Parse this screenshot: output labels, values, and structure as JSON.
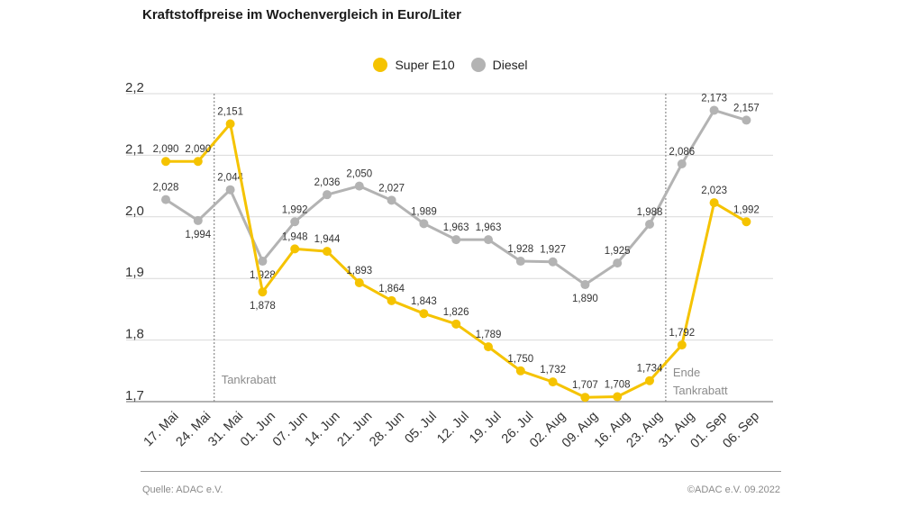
{
  "title": "Kraftstoffpreise im Wochenvergleich in Euro/Liter",
  "source": "Quelle: ADAC e.V.",
  "copyright": "©ADAC e.V.  09.2022",
  "colors": {
    "super": "#f5c300",
    "diesel": "#b3b3b3",
    "grid": "#d9d9d9",
    "annotation": "#8c8c8c"
  },
  "chart_data": {
    "type": "line",
    "categories": [
      "17. Mai",
      "24. Mai",
      "31. Mai",
      "01. Jun",
      "07. Jun",
      "14. Jun",
      "21. Jun",
      "28. Jun",
      "05. Jul",
      "12. Jul",
      "19. Jul",
      "26. Jul",
      "02. Aug",
      "09. Aug",
      "16. Aug",
      "23. Aug",
      "31. Aug",
      "01. Sep",
      "06. Sep"
    ],
    "series": [
      {
        "name": "Super E10",
        "color": "#f5c300",
        "values": [
          2.09,
          2.09,
          2.151,
          1.878,
          1.948,
          1.944,
          1.893,
          1.864,
          1.843,
          1.826,
          1.789,
          1.75,
          1.732,
          1.707,
          1.708,
          1.734,
          1.792,
          2.023,
          1.992
        ],
        "labels": [
          "2,090",
          "2,090",
          "2,151",
          "1,878",
          "1,948",
          "1,944",
          "1,893",
          "1,864",
          "1,843",
          "1,826",
          "1,789",
          "1,750",
          "1,732",
          "1,707",
          "1,708",
          "1,734",
          "1,792",
          "2,023",
          "1,992"
        ]
      },
      {
        "name": "Diesel",
        "color": "#b3b3b3",
        "values": [
          2.028,
          1.994,
          2.044,
          1.928,
          1.992,
          2.036,
          2.05,
          2.027,
          1.989,
          1.963,
          1.963,
          1.928,
          1.927,
          1.89,
          1.925,
          1.988,
          2.086,
          2.173,
          2.157
        ],
        "labels": [
          "2,028",
          "1,994",
          "2,044",
          "1,928",
          "1,992",
          "2,036",
          "2,050",
          "2,027",
          "1,989",
          "1,963",
          "1,963",
          "1,928",
          "1,927",
          "1,890",
          "1,925",
          "1,988",
          "2,086",
          "2,173",
          "2,157"
        ]
      }
    ],
    "yticks": [
      1.7,
      1.8,
      1.9,
      2.0,
      2.1,
      2.2
    ],
    "ytick_labels": [
      "1,7",
      "1,8",
      "1,9",
      "2,0",
      "2,1",
      "2,2"
    ],
    "ylim": [
      1.7,
      2.2
    ],
    "grid": true,
    "legend_position": "top-center",
    "annotations": [
      {
        "after_category": "24. Mai",
        "lines": [
          "Tankrabatt"
        ]
      },
      {
        "after_category": "23. Aug",
        "lines": [
          "Ende",
          "Tankrabatt"
        ]
      }
    ]
  }
}
